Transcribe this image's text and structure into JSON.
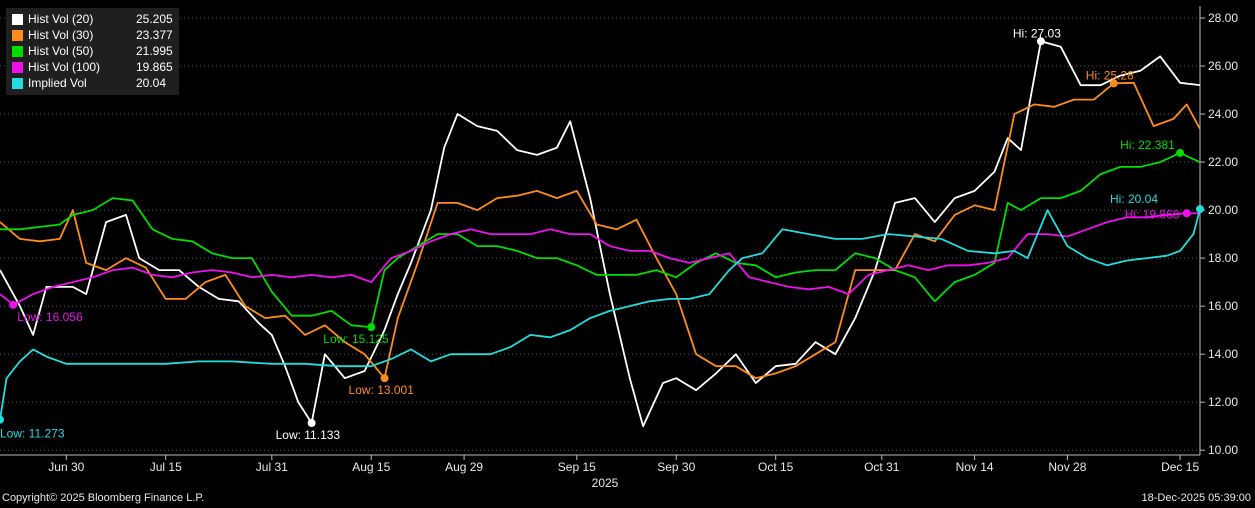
{
  "chart_data": {
    "type": "line",
    "title": "",
    "xlabel": "2025",
    "ylabel": "",
    "x_range": [
      "2025-06-20",
      "2025-12-18"
    ],
    "ylim": [
      9.8,
      28.5
    ],
    "y_ticks": [
      10,
      12,
      14,
      16,
      18,
      20,
      22,
      24,
      26,
      28
    ],
    "y_tick_labels": [
      "10.00",
      "12.00",
      "14.00",
      "16.00",
      "18.00",
      "20.00",
      "22.00",
      "24.00",
      "26.00",
      "28.00"
    ],
    "x_ticks": [
      "2025-06-30",
      "2025-07-15",
      "2025-07-31",
      "2025-08-15",
      "2025-08-29",
      "2025-09-15",
      "2025-09-30",
      "2025-10-15",
      "2025-10-31",
      "2025-11-14",
      "2025-11-28",
      "2025-12-15"
    ],
    "x_tick_labels": [
      "Jun 30",
      "Jul 15",
      "Jul 31",
      "Aug 15",
      "Aug 29",
      "Sep 15",
      "Sep 30",
      "Oct 15",
      "Oct 31",
      "Nov 14",
      "Nov 28",
      "Dec 15"
    ],
    "grid": "horizontal dotted",
    "legend_placement": "top-left",
    "series": [
      {
        "name": "Hist Vol (20)",
        "last_value": "25.205",
        "color": "#ffffff",
        "x": [
          "2025-06-20",
          "2025-06-23",
          "2025-06-25",
          "2025-06-27",
          "2025-07-01",
          "2025-07-03",
          "2025-07-06",
          "2025-07-09",
          "2025-07-11",
          "2025-07-14",
          "2025-07-17",
          "2025-07-20",
          "2025-07-23",
          "2025-07-26",
          "2025-07-29",
          "2025-07-31",
          "2025-08-02",
          "2025-08-04",
          "2025-08-06",
          "2025-08-08",
          "2025-08-11",
          "2025-08-14",
          "2025-08-17",
          "2025-08-19",
          "2025-08-21",
          "2025-08-24",
          "2025-08-26",
          "2025-08-28",
          "2025-08-31",
          "2025-09-03",
          "2025-09-06",
          "2025-09-09",
          "2025-09-12",
          "2025-09-14",
          "2025-09-17",
          "2025-09-20",
          "2025-09-23",
          "2025-09-25",
          "2025-09-28",
          "2025-09-30",
          "2025-10-03",
          "2025-10-06",
          "2025-10-09",
          "2025-10-12",
          "2025-10-15",
          "2025-10-18",
          "2025-10-21",
          "2025-10-24",
          "2025-10-27",
          "2025-10-30",
          "2025-11-02",
          "2025-11-05",
          "2025-11-08",
          "2025-11-11",
          "2025-11-14",
          "2025-11-17",
          "2025-11-19",
          "2025-11-21",
          "2025-11-24",
          "2025-11-27",
          "2025-11-30",
          "2025-12-03",
          "2025-12-06",
          "2025-12-09",
          "2025-12-12",
          "2025-12-15",
          "2025-12-18"
        ],
        "y": [
          17.5,
          16.0,
          14.8,
          16.8,
          16.8,
          16.5,
          19.5,
          19.8,
          18.0,
          17.5,
          17.5,
          16.8,
          16.3,
          16.2,
          15.3,
          14.8,
          13.5,
          12.0,
          11.133,
          14.0,
          13.0,
          13.3,
          15.0,
          16.5,
          17.8,
          20.0,
          22.6,
          24.0,
          23.5,
          23.3,
          22.5,
          22.3,
          22.6,
          23.7,
          20.5,
          16.5,
          13.0,
          11.0,
          12.8,
          13.0,
          12.5,
          13.2,
          14.0,
          12.8,
          13.5,
          13.6,
          14.5,
          14.0,
          15.5,
          17.5,
          20.3,
          20.5,
          19.5,
          20.5,
          20.8,
          21.6,
          23.0,
          22.5,
          27.03,
          26.8,
          25.2,
          25.2,
          25.6,
          25.8,
          26.4,
          25.3,
          25.205
        ]
      },
      {
        "name": "Hist Vol (30)",
        "last_value": "23.377",
        "color": "#ff8c1a",
        "x": [
          "2025-06-20",
          "2025-06-23",
          "2025-06-26",
          "2025-06-29",
          "2025-07-01",
          "2025-07-03",
          "2025-07-06",
          "2025-07-09",
          "2025-07-12",
          "2025-07-15",
          "2025-07-18",
          "2025-07-21",
          "2025-07-24",
          "2025-07-27",
          "2025-07-30",
          "2025-08-02",
          "2025-08-05",
          "2025-08-08",
          "2025-08-11",
          "2025-08-14",
          "2025-08-17",
          "2025-08-19",
          "2025-08-22",
          "2025-08-25",
          "2025-08-28",
          "2025-08-31",
          "2025-09-03",
          "2025-09-06",
          "2025-09-09",
          "2025-09-12",
          "2025-09-15",
          "2025-09-18",
          "2025-09-21",
          "2025-09-24",
          "2025-09-27",
          "2025-09-30",
          "2025-10-03",
          "2025-10-06",
          "2025-10-09",
          "2025-10-12",
          "2025-10-15",
          "2025-10-18",
          "2025-10-21",
          "2025-10-24",
          "2025-10-27",
          "2025-10-30",
          "2025-11-02",
          "2025-11-05",
          "2025-11-08",
          "2025-11-11",
          "2025-11-14",
          "2025-11-17",
          "2025-11-20",
          "2025-11-23",
          "2025-11-26",
          "2025-11-29",
          "2025-12-02",
          "2025-12-05",
          "2025-12-08",
          "2025-12-11",
          "2025-12-14",
          "2025-12-16",
          "2025-12-18"
        ],
        "y": [
          19.5,
          18.8,
          18.7,
          18.8,
          20.0,
          17.8,
          17.5,
          18.0,
          17.6,
          16.3,
          16.3,
          17.0,
          17.3,
          16.0,
          15.5,
          15.6,
          14.8,
          15.2,
          14.5,
          14.0,
          13.001,
          15.5,
          17.8,
          20.3,
          20.3,
          20.0,
          20.5,
          20.6,
          20.8,
          20.5,
          20.8,
          19.4,
          19.2,
          19.6,
          18.0,
          16.5,
          14.0,
          13.5,
          13.5,
          13.0,
          13.2,
          13.5,
          14.0,
          14.5,
          17.5,
          17.5,
          17.5,
          19.0,
          18.7,
          19.8,
          20.2,
          20.0,
          24.0,
          24.4,
          24.3,
          24.6,
          24.6,
          25.28,
          25.3,
          23.5,
          23.8,
          24.4,
          23.377
        ]
      },
      {
        "name": "Hist Vol (50)",
        "last_value": "21.995",
        "color": "#00dd00",
        "x": [
          "2025-06-20",
          "2025-06-23",
          "2025-06-26",
          "2025-06-29",
          "2025-07-01",
          "2025-07-04",
          "2025-07-07",
          "2025-07-10",
          "2025-07-13",
          "2025-07-16",
          "2025-07-19",
          "2025-07-22",
          "2025-07-25",
          "2025-07-28",
          "2025-07-31",
          "2025-08-03",
          "2025-08-06",
          "2025-08-09",
          "2025-08-12",
          "2025-08-15",
          "2025-08-17",
          "2025-08-19",
          "2025-08-22",
          "2025-08-25",
          "2025-08-28",
          "2025-08-31",
          "2025-09-03",
          "2025-09-06",
          "2025-09-09",
          "2025-09-12",
          "2025-09-15",
          "2025-09-18",
          "2025-09-21",
          "2025-09-24",
          "2025-09-27",
          "2025-09-30",
          "2025-10-03",
          "2025-10-06",
          "2025-10-09",
          "2025-10-12",
          "2025-10-15",
          "2025-10-18",
          "2025-10-21",
          "2025-10-24",
          "2025-10-27",
          "2025-10-30",
          "2025-11-02",
          "2025-11-05",
          "2025-11-08",
          "2025-11-11",
          "2025-11-14",
          "2025-11-17",
          "2025-11-19",
          "2025-11-21",
          "2025-11-24",
          "2025-11-27",
          "2025-11-30",
          "2025-12-03",
          "2025-12-06",
          "2025-12-09",
          "2025-12-12",
          "2025-12-15",
          "2025-12-18"
        ],
        "y": [
          19.2,
          19.2,
          19.3,
          19.4,
          19.8,
          20.0,
          20.5,
          20.4,
          19.2,
          18.8,
          18.7,
          18.2,
          18.0,
          18.0,
          16.6,
          15.6,
          15.6,
          15.8,
          15.2,
          15.125,
          17.5,
          18.0,
          18.5,
          19.0,
          19.0,
          18.5,
          18.5,
          18.3,
          18.0,
          18.0,
          17.7,
          17.3,
          17.3,
          17.3,
          17.5,
          17.2,
          17.8,
          18.2,
          17.8,
          17.7,
          17.2,
          17.4,
          17.5,
          17.5,
          18.2,
          18.0,
          17.5,
          17.2,
          16.2,
          17.0,
          17.3,
          17.8,
          20.3,
          20.0,
          20.5,
          20.5,
          20.8,
          21.5,
          21.8,
          21.8,
          22.0,
          22.381,
          21.995
        ]
      },
      {
        "name": "Hist Vol (100)",
        "last_value": "19.865",
        "color": "#ee11ee",
        "x": [
          "2025-06-20",
          "2025-06-22",
          "2025-06-25",
          "2025-06-28",
          "2025-07-01",
          "2025-07-04",
          "2025-07-07",
          "2025-07-10",
          "2025-07-13",
          "2025-07-16",
          "2025-07-19",
          "2025-07-22",
          "2025-07-25",
          "2025-07-28",
          "2025-07-31",
          "2025-08-03",
          "2025-08-06",
          "2025-08-09",
          "2025-08-12",
          "2025-08-15",
          "2025-08-18",
          "2025-08-21",
          "2025-08-24",
          "2025-08-27",
          "2025-08-30",
          "2025-09-02",
          "2025-09-05",
          "2025-09-08",
          "2025-09-11",
          "2025-09-14",
          "2025-09-17",
          "2025-09-20",
          "2025-09-23",
          "2025-09-26",
          "2025-09-29",
          "2025-10-02",
          "2025-10-05",
          "2025-10-08",
          "2025-10-11",
          "2025-10-14",
          "2025-10-17",
          "2025-10-20",
          "2025-10-23",
          "2025-10-26",
          "2025-10-29",
          "2025-11-01",
          "2025-11-04",
          "2025-11-07",
          "2025-11-10",
          "2025-11-13",
          "2025-11-16",
          "2025-11-19",
          "2025-11-22",
          "2025-11-25",
          "2025-11-28",
          "2025-12-01",
          "2025-12-04",
          "2025-12-07",
          "2025-12-10",
          "2025-12-13",
          "2025-12-16",
          "2025-12-18"
        ],
        "y": [
          16.5,
          16.056,
          16.5,
          16.8,
          17.0,
          17.2,
          17.5,
          17.6,
          17.3,
          17.2,
          17.4,
          17.5,
          17.4,
          17.2,
          17.3,
          17.2,
          17.3,
          17.2,
          17.3,
          17.0,
          18.0,
          18.3,
          18.7,
          19.0,
          19.2,
          19.0,
          19.0,
          19.0,
          19.2,
          19.0,
          19.0,
          18.5,
          18.3,
          18.3,
          18.0,
          17.8,
          18.0,
          18.2,
          17.2,
          17.0,
          16.8,
          16.7,
          16.8,
          16.5,
          17.3,
          17.5,
          17.7,
          17.5,
          17.7,
          17.7,
          17.8,
          18.0,
          19.0,
          19.0,
          18.9,
          19.2,
          19.5,
          19.7,
          19.7,
          19.8,
          19.868,
          19.865
        ]
      },
      {
        "name": "Implied Vol",
        "last_value": "20.04",
        "color": "#22dddd",
        "x": [
          "2025-06-20",
          "2025-06-21",
          "2025-06-23",
          "2025-06-25",
          "2025-06-27",
          "2025-06-30",
          "2025-07-05",
          "2025-07-10",
          "2025-07-15",
          "2025-07-20",
          "2025-07-25",
          "2025-07-31",
          "2025-08-05",
          "2025-08-10",
          "2025-08-15",
          "2025-08-18",
          "2025-08-21",
          "2025-08-24",
          "2025-08-27",
          "2025-08-30",
          "2025-09-02",
          "2025-09-05",
          "2025-09-08",
          "2025-09-11",
          "2025-09-14",
          "2025-09-17",
          "2025-09-20",
          "2025-09-23",
          "2025-09-26",
          "2025-09-29",
          "2025-10-02",
          "2025-10-05",
          "2025-10-08",
          "2025-10-10",
          "2025-10-13",
          "2025-10-16",
          "2025-10-20",
          "2025-10-24",
          "2025-10-28",
          "2025-11-01",
          "2025-11-05",
          "2025-11-09",
          "2025-11-13",
          "2025-11-17",
          "2025-11-20",
          "2025-11-22",
          "2025-11-25",
          "2025-11-28",
          "2025-12-01",
          "2025-12-04",
          "2025-12-07",
          "2025-12-10",
          "2025-12-13",
          "2025-12-15",
          "2025-12-17",
          "2025-12-18"
        ],
        "y": [
          11.273,
          13.0,
          13.7,
          14.2,
          13.9,
          13.6,
          13.6,
          13.6,
          13.6,
          13.7,
          13.7,
          13.6,
          13.6,
          13.5,
          13.5,
          13.8,
          14.2,
          13.7,
          14.0,
          14.0,
          14.0,
          14.3,
          14.8,
          14.7,
          15.0,
          15.5,
          15.8,
          16.0,
          16.2,
          16.3,
          16.3,
          16.5,
          17.5,
          18.0,
          18.2,
          19.2,
          19.0,
          18.8,
          18.8,
          19.0,
          18.9,
          18.8,
          18.3,
          18.2,
          18.3,
          18.0,
          20.0,
          18.5,
          18.0,
          17.7,
          17.9,
          18.0,
          18.1,
          18.3,
          19.0,
          20.04
        ]
      }
    ],
    "annotations": [
      {
        "text": "Hi: 27.03",
        "series": "Hist Vol (20)",
        "x": "2025-11-24",
        "y": 27.03,
        "color": "#ffffff"
      },
      {
        "text": "Low: 11.133",
        "series": "Hist Vol (20)",
        "x": "2025-08-06",
        "y": 11.133,
        "color": "#ffffff"
      },
      {
        "text": "Hi: 25.28",
        "series": "Hist Vol (30)",
        "x": "2025-12-05",
        "y": 25.28,
        "color": "#ff8c1a"
      },
      {
        "text": "Low: 13.001",
        "series": "Hist Vol (30)",
        "x": "2025-08-17",
        "y": 13.001,
        "color": "#ff8c1a"
      },
      {
        "text": "Hi: 22.381",
        "series": "Hist Vol (50)",
        "x": "2025-12-15",
        "y": 22.381,
        "color": "#00dd00"
      },
      {
        "text": "Low: 15.125",
        "series": "Hist Vol (50)",
        "x": "2025-08-15",
        "y": 15.125,
        "color": "#00dd00"
      },
      {
        "text": "Hi: 19.868",
        "series": "Hist Vol (100)",
        "x": "2025-12-16",
        "y": 19.868,
        "color": "#ee11ee"
      },
      {
        "text": "Low: 16.056",
        "series": "Hist Vol (100)",
        "x": "2025-06-22",
        "y": 16.056,
        "color": "#ee11ee"
      },
      {
        "text": "Hi: 20.04",
        "series": "Implied Vol",
        "x": "2025-12-18",
        "y": 20.04,
        "color": "#22dddd"
      },
      {
        "text": "Low: 11.273",
        "series": "Implied Vol",
        "x": "2025-06-20",
        "y": 11.273,
        "color": "#22dddd"
      }
    ]
  },
  "footer": {
    "copyright": "Copyright© 2025 Bloomberg Finance L.P.",
    "timestamp": "18-Dec-2025 05:39:00"
  }
}
